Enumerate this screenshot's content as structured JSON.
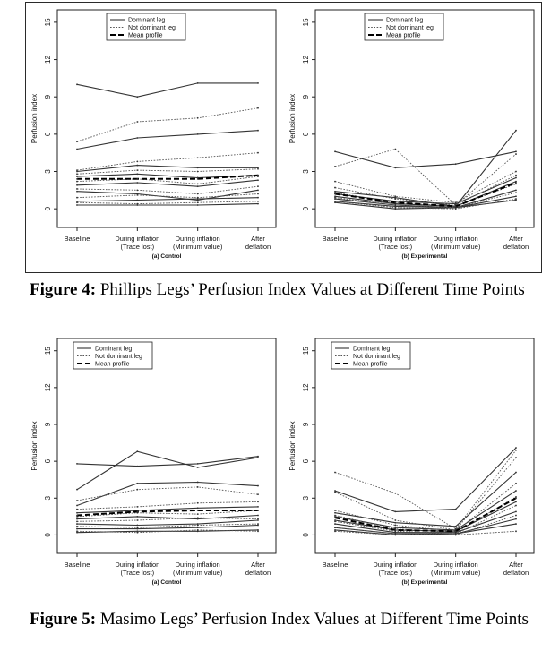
{
  "figures": [
    {
      "caption_label": "Figure 4:",
      "caption_text": "Phillips Legs’ Perfusion Index Values at Different Time Points"
    },
    {
      "caption_label": "Figure 5:",
      "caption_text": "Masimo Legs’ Perfusion Index Values at Different Time Points"
    }
  ],
  "chart_data": [
    {
      "type": "line",
      "figure": 4,
      "panel": "(a) Control",
      "ylabel": "Perfusion index",
      "ylim": [
        -1.5,
        16
      ],
      "yticks": [
        0,
        3,
        6,
        9,
        12,
        15
      ],
      "categories": [
        "Baseline",
        "During inflation\n(Trace lost)",
        "During inflation\n(Minimum value)",
        "After\ndeflation"
      ],
      "legend": {
        "position": "top-center",
        "entries": [
          "Dominant leg",
          "Not dominant leg",
          "Mean profile"
        ]
      },
      "series": [
        {
          "kind": "dominant",
          "values": [
            10.0,
            9.0,
            10.1,
            10.1
          ]
        },
        {
          "kind": "dominant",
          "values": [
            4.8,
            5.7,
            6.0,
            6.3
          ]
        },
        {
          "kind": "dominant",
          "values": [
            3.0,
            3.5,
            3.3,
            3.3
          ]
        },
        {
          "kind": "dominant",
          "values": [
            2.6,
            2.8,
            2.5,
            2.7
          ]
        },
        {
          "kind": "dominant",
          "values": [
            1.9,
            2.1,
            1.8,
            2.3
          ]
        },
        {
          "kind": "dominant",
          "values": [
            1.4,
            1.2,
            0.7,
            1.5
          ]
        },
        {
          "kind": "dominant",
          "values": [
            0.6,
            0.7,
            0.8,
            0.9
          ]
        },
        {
          "kind": "dominant",
          "values": [
            0.3,
            0.3,
            0.3,
            0.4
          ]
        },
        {
          "kind": "not_dominant",
          "values": [
            5.4,
            7.0,
            7.3,
            8.1
          ]
        },
        {
          "kind": "not_dominant",
          "values": [
            3.1,
            3.8,
            4.1,
            4.5
          ]
        },
        {
          "kind": "not_dominant",
          "values": [
            2.8,
            3.1,
            3.0,
            3.2
          ]
        },
        {
          "kind": "not_dominant",
          "values": [
            2.2,
            2.4,
            2.0,
            2.6
          ]
        },
        {
          "kind": "not_dominant",
          "values": [
            1.6,
            1.5,
            1.2,
            1.8
          ]
        },
        {
          "kind": "not_dominant",
          "values": [
            0.9,
            1.1,
            0.9,
            1.2
          ]
        },
        {
          "kind": "not_dominant",
          "values": [
            0.5,
            0.4,
            0.5,
            0.6
          ]
        },
        {
          "kind": "mean",
          "values": [
            2.4,
            2.4,
            2.4,
            2.7
          ]
        }
      ]
    },
    {
      "type": "line",
      "figure": 4,
      "panel": "(b) Experimental",
      "ylabel": "Perfusion index",
      "ylim": [
        -1.5,
        16
      ],
      "yticks": [
        0,
        3,
        6,
        9,
        12,
        15
      ],
      "categories": [
        "Baseline",
        "During inflation\n(Trace lost)",
        "During inflation\n(Minimum value)",
        "After\ndeflation"
      ],
      "legend": {
        "position": "top-center",
        "entries": [
          "Dominant leg",
          "Not dominant leg",
          "Mean profile"
        ]
      },
      "series": [
        {
          "kind": "dominant",
          "values": [
            4.6,
            3.3,
            3.6,
            4.6
          ]
        },
        {
          "kind": "dominant",
          "values": [
            1.4,
            0.9,
            0.2,
            6.3
          ]
        },
        {
          "kind": "dominant",
          "values": [
            1.2,
            0.6,
            0.4,
            2.5
          ]
        },
        {
          "kind": "dominant",
          "values": [
            1.0,
            0.4,
            0.2,
            2.2
          ]
        },
        {
          "kind": "dominant",
          "values": [
            0.8,
            0.3,
            0.1,
            1.5
          ]
        },
        {
          "kind": "dominant",
          "values": [
            0.6,
            0.2,
            0.1,
            1.0
          ]
        },
        {
          "kind": "dominant",
          "values": [
            0.5,
            0.0,
            0.1,
            0.7
          ]
        },
        {
          "kind": "not_dominant",
          "values": [
            3.4,
            4.8,
            0.3,
            4.4
          ]
        },
        {
          "kind": "not_dominant",
          "values": [
            2.2,
            1.0,
            0.5,
            3.0
          ]
        },
        {
          "kind": "not_dominant",
          "values": [
            1.7,
            0.8,
            0.3,
            2.7
          ]
        },
        {
          "kind": "not_dominant",
          "values": [
            1.3,
            0.5,
            0.2,
            2.0
          ]
        },
        {
          "kind": "not_dominant",
          "values": [
            0.9,
            0.3,
            0.1,
            1.3
          ]
        },
        {
          "kind": "not_dominant",
          "values": [
            0.6,
            0.1,
            0.0,
            0.8
          ]
        },
        {
          "kind": "mean",
          "values": [
            1.2,
            0.5,
            0.2,
            2.1
          ]
        }
      ]
    },
    {
      "type": "line",
      "figure": 5,
      "panel": "(a) Control",
      "ylabel": "Perfusion index",
      "ylim": [
        -1.5,
        16
      ],
      "yticks": [
        0,
        3,
        6,
        9,
        12,
        15
      ],
      "categories": [
        "Baseline",
        "During inflation\n(Trace lost)",
        "During inflation\n(Minimum value)",
        "After\ndeflation"
      ],
      "legend": {
        "position": "top-left",
        "entries": [
          "Dominant leg",
          "Not dominant leg",
          "Mean profile"
        ]
      },
      "series": [
        {
          "kind": "dominant",
          "values": [
            5.8,
            5.6,
            5.8,
            6.4
          ]
        },
        {
          "kind": "dominant",
          "values": [
            3.7,
            6.8,
            5.5,
            6.3
          ]
        },
        {
          "kind": "dominant",
          "values": [
            2.4,
            4.2,
            4.3,
            4.0
          ]
        },
        {
          "kind": "dominant",
          "values": [
            1.8,
            2.0,
            2.2,
            2.3
          ]
        },
        {
          "kind": "dominant",
          "values": [
            1.3,
            1.5,
            1.3,
            1.6
          ]
        },
        {
          "kind": "dominant",
          "values": [
            0.9,
            0.8,
            0.9,
            1.2
          ]
        },
        {
          "kind": "dominant",
          "values": [
            0.5,
            0.5,
            0.6,
            0.8
          ]
        },
        {
          "kind": "dominant",
          "values": [
            0.2,
            0.3,
            0.3,
            0.4
          ]
        },
        {
          "kind": "not_dominant",
          "values": [
            2.8,
            3.7,
            3.9,
            3.3
          ]
        },
        {
          "kind": "not_dominant",
          "values": [
            2.1,
            2.3,
            2.6,
            2.7
          ]
        },
        {
          "kind": "not_dominant",
          "values": [
            1.5,
            1.8,
            1.7,
            2.0
          ]
        },
        {
          "kind": "not_dominant",
          "values": [
            1.1,
            1.2,
            1.4,
            1.3
          ]
        },
        {
          "kind": "not_dominant",
          "values": [
            0.7,
            0.6,
            0.8,
            0.9
          ]
        },
        {
          "kind": "not_dominant",
          "values": [
            0.3,
            0.2,
            0.4,
            0.3
          ]
        },
        {
          "kind": "mean",
          "values": [
            1.6,
            1.9,
            2.0,
            2.0
          ]
        }
      ]
    },
    {
      "type": "line",
      "figure": 5,
      "panel": "(b) Experimental",
      "ylabel": "Perfusion index",
      "ylim": [
        -1.5,
        16
      ],
      "yticks": [
        0,
        3,
        6,
        9,
        12,
        15
      ],
      "categories": [
        "Baseline",
        "During inflation\n(Trace lost)",
        "During inflation\n(Minimum value)",
        "After\ndeflation"
      ],
      "legend": {
        "position": "top-left",
        "entries": [
          "Dominant leg",
          "Not dominant leg",
          "Mean profile"
        ]
      },
      "series": [
        {
          "kind": "dominant",
          "values": [
            3.6,
            1.9,
            2.1,
            7.1
          ]
        },
        {
          "kind": "dominant",
          "values": [
            1.8,
            1.0,
            0.7,
            5.1
          ]
        },
        {
          "kind": "dominant",
          "values": [
            1.5,
            0.6,
            0.4,
            3.6
          ]
        },
        {
          "kind": "dominant",
          "values": [
            1.2,
            0.4,
            0.3,
            2.7
          ]
        },
        {
          "kind": "dominant",
          "values": [
            0.9,
            0.2,
            0.2,
            1.9
          ]
        },
        {
          "kind": "dominant",
          "values": [
            0.6,
            0.1,
            0.1,
            1.3
          ]
        },
        {
          "kind": "dominant",
          "values": [
            0.4,
            0.0,
            0.1,
            0.9
          ]
        },
        {
          "kind": "not_dominant",
          "values": [
            5.1,
            3.4,
            0.5,
            6.9
          ]
        },
        {
          "kind": "not_dominant",
          "values": [
            3.5,
            1.2,
            0.4,
            6.3
          ]
        },
        {
          "kind": "not_dominant",
          "values": [
            2.0,
            0.8,
            0.3,
            4.2
          ]
        },
        {
          "kind": "not_dominant",
          "values": [
            1.6,
            0.5,
            0.2,
            3.1
          ]
        },
        {
          "kind": "not_dominant",
          "values": [
            1.1,
            0.3,
            0.1,
            2.4
          ]
        },
        {
          "kind": "not_dominant",
          "values": [
            0.6,
            0.1,
            0.0,
            1.6
          ]
        },
        {
          "kind": "not_dominant",
          "values": [
            0.3,
            0.0,
            0.0,
            0.3
          ]
        },
        {
          "kind": "mean",
          "values": [
            1.4,
            0.4,
            0.3,
            3.0
          ]
        }
      ]
    }
  ]
}
